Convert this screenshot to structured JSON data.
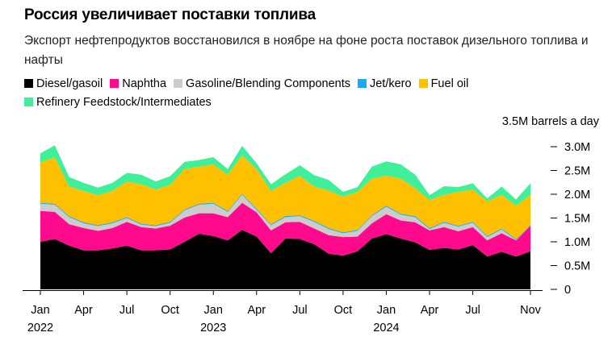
{
  "title": "Россия увеличивает поставки топлива",
  "subtitle": "Экспорт нефтепродуктов восстановился в ноябре на фоне роста поставок дизельного топлива и нафты",
  "chart_data": {
    "type": "area",
    "stacked": true,
    "unit_label": "3.5M barrels a day",
    "x": [
      "2022-01",
      "2022-02",
      "2022-03",
      "2022-04",
      "2022-05",
      "2022-06",
      "2022-07",
      "2022-08",
      "2022-09",
      "2022-10",
      "2022-11",
      "2022-12",
      "2023-01",
      "2023-02",
      "2023-03",
      "2023-04",
      "2023-05",
      "2023-06",
      "2023-07",
      "2023-08",
      "2023-09",
      "2023-10",
      "2023-11",
      "2023-12",
      "2024-01",
      "2024-02",
      "2024-03",
      "2024-04",
      "2024-05",
      "2024-06",
      "2024-07",
      "2024-08",
      "2024-09",
      "2024-10",
      "2024-11"
    ],
    "x_ticks": [
      {
        "month": "Jan",
        "year": "2022",
        "index": 0
      },
      {
        "month": "Apr",
        "year": "",
        "index": 3
      },
      {
        "month": "Jul",
        "year": "",
        "index": 6
      },
      {
        "month": "Oct",
        "year": "",
        "index": 9
      },
      {
        "month": "Jan",
        "year": "2023",
        "index": 12
      },
      {
        "month": "Apr",
        "year": "",
        "index": 15
      },
      {
        "month": "Jul",
        "year": "",
        "index": 18
      },
      {
        "month": "Oct",
        "year": "",
        "index": 21
      },
      {
        "month": "Jan",
        "year": "2024",
        "index": 24
      },
      {
        "month": "Apr",
        "year": "",
        "index": 27
      },
      {
        "month": "Jul",
        "year": "",
        "index": 30
      },
      {
        "month": "Nov",
        "year": "",
        "index": 34
      }
    ],
    "y_ticks": [
      {
        "v": 0,
        "label": "0"
      },
      {
        "v": 0.5,
        "label": "0.5M"
      },
      {
        "v": 1.0,
        "label": "1.0M"
      },
      {
        "v": 1.5,
        "label": "1.5M"
      },
      {
        "v": 2.0,
        "label": "2.0M"
      },
      {
        "v": 2.5,
        "label": "2.5M"
      },
      {
        "v": 3.0,
        "label": "3.0M"
      }
    ],
    "ylim": [
      0,
      3.0
    ],
    "legend_position": "top",
    "series": [
      {
        "name": "Diesel/gasoil",
        "color": "#000000",
        "values": [
          1.0,
          1.06,
          0.92,
          0.82,
          0.82,
          0.86,
          0.92,
          0.82,
          0.82,
          0.84,
          1.0,
          1.17,
          1.12,
          1.03,
          1.25,
          1.11,
          0.76,
          1.07,
          1.06,
          0.95,
          0.75,
          0.71,
          0.8,
          1.07,
          1.16,
          1.07,
          0.99,
          0.83,
          0.87,
          0.84,
          0.93,
          0.69,
          0.79,
          0.69,
          0.8
        ]
      },
      {
        "name": "Naphtha",
        "color": "#ff0a8c",
        "values": [
          0.65,
          0.57,
          0.45,
          0.47,
          0.41,
          0.43,
          0.5,
          0.49,
          0.46,
          0.5,
          0.51,
          0.43,
          0.48,
          0.49,
          0.57,
          0.51,
          0.48,
          0.34,
          0.36,
          0.33,
          0.39,
          0.39,
          0.31,
          0.32,
          0.42,
          0.38,
          0.42,
          0.41,
          0.44,
          0.38,
          0.38,
          0.34,
          0.39,
          0.34,
          0.54
        ]
      },
      {
        "name": "Gasoline/Blending Components",
        "color": "#cccccc",
        "values": [
          0.15,
          0.15,
          0.15,
          0.1,
          0.1,
          0.1,
          0.08,
          0.05,
          0.05,
          0.06,
          0.15,
          0.18,
          0.2,
          0.11,
          0.17,
          0.05,
          0.11,
          0.11,
          0.12,
          0.14,
          0.13,
          0.08,
          0.12,
          0.15,
          0.16,
          0.12,
          0.11,
          0.03,
          0.09,
          0.1,
          0.09,
          0.07,
          0.08,
          0.01,
          0.0
        ]
      },
      {
        "name": "Jet/kero",
        "color": "#1ea7f2",
        "values": [
          0.02,
          0.02,
          0.02,
          0.02,
          0.02,
          0.02,
          0.02,
          0.02,
          0.02,
          0.02,
          0.02,
          0.02,
          0.02,
          0.02,
          0.02,
          0.02,
          0.02,
          0.02,
          0.02,
          0.02,
          0.02,
          0.02,
          0.02,
          0.02,
          0.02,
          0.02,
          0.02,
          0.02,
          0.02,
          0.02,
          0.02,
          0.02,
          0.02,
          0.02,
          0.01
        ]
      },
      {
        "name": "Fuel oil",
        "color": "#ffc000",
        "values": [
          0.85,
          0.98,
          0.62,
          0.66,
          0.63,
          0.66,
          0.75,
          0.83,
          0.75,
          0.78,
          0.85,
          0.78,
          0.81,
          0.76,
          0.81,
          0.84,
          0.7,
          0.7,
          0.83,
          0.72,
          0.79,
          0.75,
          0.8,
          0.77,
          0.63,
          0.74,
          0.59,
          0.59,
          0.57,
          0.71,
          0.68,
          0.73,
          0.71,
          0.7,
          0.64
        ]
      },
      {
        "name": "Refinery Feedstock/Intermediates",
        "color": "#3fef9a",
        "values": [
          0.19,
          0.25,
          0.2,
          0.17,
          0.16,
          0.17,
          0.18,
          0.2,
          0.17,
          0.18,
          0.15,
          0.14,
          0.15,
          0.12,
          0.2,
          0.12,
          0.14,
          0.18,
          0.22,
          0.24,
          0.22,
          0.1,
          0.1,
          0.25,
          0.3,
          0.3,
          0.28,
          0.1,
          0.18,
          0.1,
          0.13,
          0.06,
          0.17,
          0.13,
          0.24
        ]
      }
    ]
  }
}
